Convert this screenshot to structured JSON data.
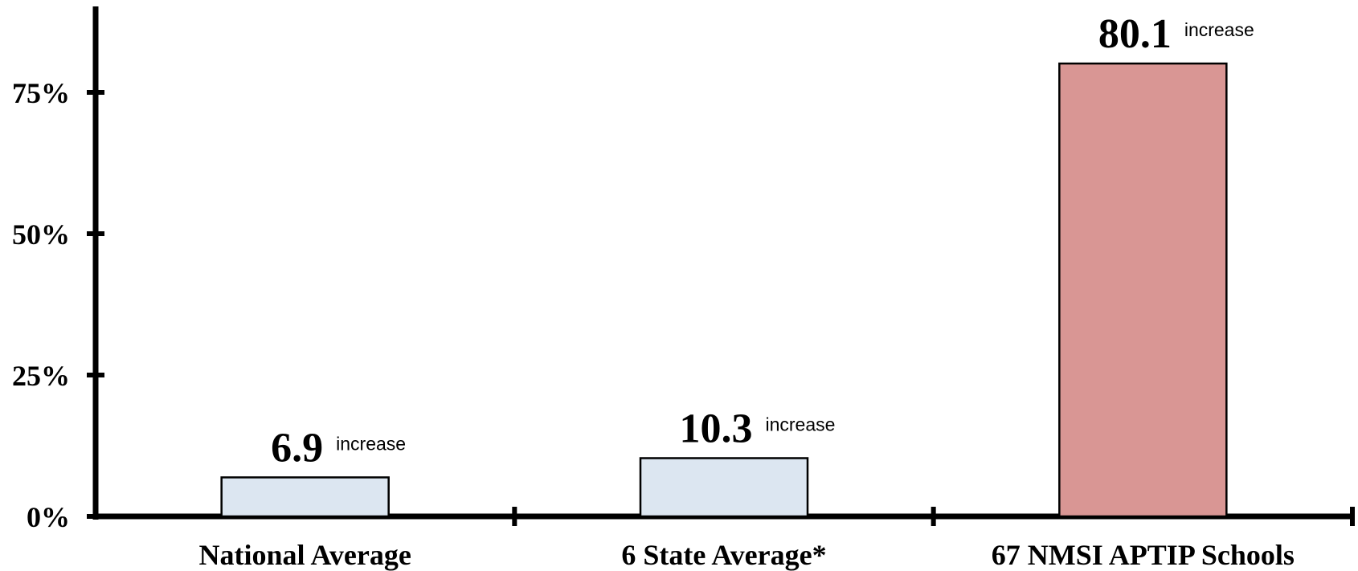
{
  "chart_data": {
    "type": "bar",
    "categories": [
      "National Average",
      "6 State Average*",
      "67 NMSI APTIP Schools"
    ],
    "values": [
      6.9,
      10.3,
      80.1
    ],
    "value_labels": [
      "6.9",
      "10.3",
      "80.1"
    ],
    "value_suffix": "increase",
    "y_ticks": [
      0,
      25,
      50,
      75
    ],
    "y_tick_labels": [
      "0%",
      "25%",
      "50%",
      "75%"
    ],
    "ylim": [
      0,
      90
    ],
    "grid": false,
    "legend": "none",
    "colors": [
      "#dce6f1",
      "#dce6f1",
      "#d99694"
    ],
    "axis_color": "#000000"
  }
}
